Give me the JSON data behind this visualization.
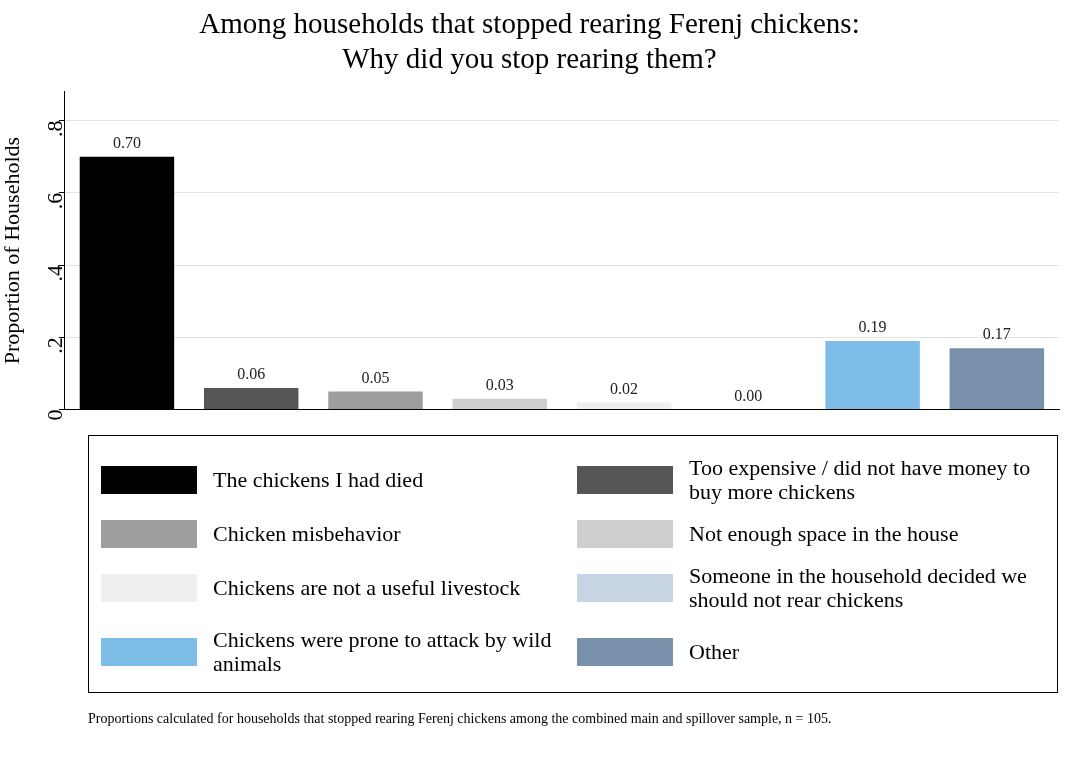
{
  "chart_data": {
    "type": "bar",
    "title": "Among households that stopped rearing Ferenj chickens:\nWhy did you stop rearing them?",
    "ylabel": "Proportion of Households",
    "categories": [
      null,
      null,
      null,
      null,
      null,
      null,
      null,
      null
    ],
    "series": [
      {
        "name": "The chickens I had died",
        "color": "#000000",
        "values": [
          0.7,
          null,
          null,
          null,
          null,
          null,
          null,
          null
        ],
        "value_labels": [
          "0.70",
          null,
          null,
          null,
          null,
          null,
          null,
          null
        ]
      },
      {
        "name": "Too expensive / did not have money to buy more chickens",
        "color": "#555555",
        "values": [
          null,
          0.06,
          null,
          null,
          null,
          null,
          null,
          null
        ],
        "value_labels": [
          null,
          "0.06",
          null,
          null,
          null,
          null,
          null,
          null
        ]
      },
      {
        "name": "Chicken misbehavior",
        "color": "#9e9e9e",
        "values": [
          null,
          null,
          0.05,
          null,
          null,
          null,
          null,
          null
        ],
        "value_labels": [
          null,
          null,
          "0.05",
          null,
          null,
          null,
          null,
          null
        ]
      },
      {
        "name": "Not enough space in the house",
        "color": "#cecece",
        "values": [
          null,
          null,
          null,
          0.03,
          null,
          null,
          null,
          null
        ],
        "value_labels": [
          null,
          null,
          null,
          "0.03",
          null,
          null,
          null,
          null
        ]
      },
      {
        "name": "Chickens are not a useful livestock",
        "color": "#efefef",
        "values": [
          null,
          null,
          null,
          null,
          0.02,
          null,
          null,
          null
        ],
        "value_labels": [
          null,
          null,
          null,
          null,
          "0.02",
          null,
          null,
          null
        ]
      },
      {
        "name": "Someone in the household decided we should not rear chickens",
        "color": "#c6d4e4",
        "values": [
          null,
          null,
          null,
          null,
          null,
          0.0,
          null,
          null
        ],
        "value_labels": [
          null,
          null,
          null,
          null,
          null,
          "0.00",
          null,
          null
        ]
      },
      {
        "name": "Chickens were prone to attack by wild animals",
        "color": "#7dbde8",
        "values": [
          null,
          null,
          null,
          null,
          null,
          null,
          0.19,
          null
        ],
        "value_labels": [
          null,
          null,
          null,
          null,
          null,
          null,
          "0.19",
          null
        ]
      },
      {
        "name": "Other",
        "color": "#7990ab",
        "values": [
          null,
          null,
          null,
          null,
          null,
          null,
          null,
          0.17
        ],
        "value_labels": [
          null,
          null,
          null,
          null,
          null,
          null,
          null,
          "0.17"
        ]
      }
    ],
    "ylim": [
      0,
      0.88
    ],
    "yticks": [
      0,
      {
        "value": 0.2,
        "label": ".2"
      },
      {
        "value": 0.4,
        "label": ".4"
      },
      {
        "value": 0.6,
        "label": ".6"
      },
      {
        "value": 0.8,
        "label": ".8"
      }
    ],
    "grid": "y",
    "legend": "bottom",
    "annotations": [
      "Proportions calculated for households that stopped rearing Ferenj chickens among the combined main and spillover sample, n = 105."
    ]
  }
}
